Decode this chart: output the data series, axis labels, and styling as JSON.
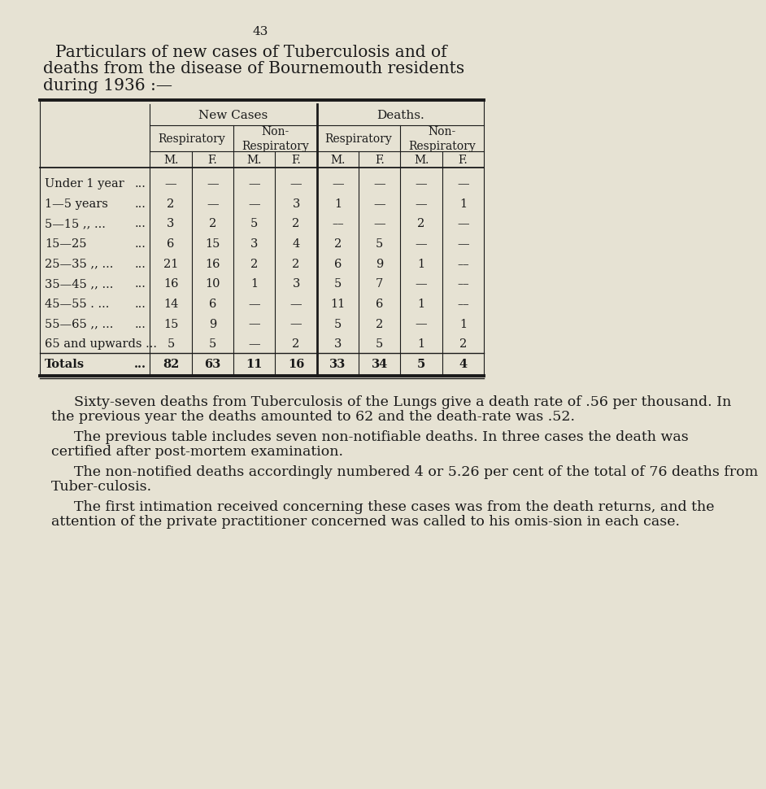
{
  "page_number": "43",
  "title_lines": [
    "Particulars of new cases of Tuberculosis and of",
    "deaths from the disease of Bournemouth residents",
    "during 1936 :—"
  ],
  "bg_color": "#e6e2d3",
  "text_color": "#1a1a1a",
  "col_headers_level3": [
    "M.",
    "F.",
    "M.",
    "F.",
    "M.",
    "F.",
    "M.",
    "F."
  ],
  "data": [
    [
      "—",
      "—",
      "—",
      "—",
      "—",
      "—",
      "—",
      "—"
    ],
    [
      "2",
      "—",
      "—",
      "3",
      "1",
      "—",
      "—",
      "1"
    ],
    [
      "3",
      "2",
      "5",
      "2",
      "––",
      "—",
      "2",
      "—"
    ],
    [
      "6",
      "15",
      "3",
      "4",
      "2",
      "5",
      "—",
      "—"
    ],
    [
      "21",
      "16",
      "2",
      "2",
      "6",
      "9",
      "1",
      "––"
    ],
    [
      "16",
      "10",
      "1",
      "3",
      "5",
      "7",
      "—",
      "––"
    ],
    [
      "14",
      "6",
      "—",
      "—",
      "11",
      "6",
      "1",
      "––"
    ],
    [
      "15",
      "9",
      "—",
      "—",
      "5",
      "2",
      "—",
      "1"
    ],
    [
      "5",
      "5",
      "—",
      "2",
      "3",
      "5",
      "1",
      "2"
    ],
    [
      "82",
      "63",
      "11",
      "16",
      "33",
      "34",
      "5",
      "4"
    ]
  ],
  "row_labels_text": [
    "Under 1 year",
    "1—5 years",
    "5—15 ,, ...",
    "15—25",
    "25—35 ,, ...",
    "35—45 ,, ...",
    "45—55 . ...",
    "55—65 ,, ...",
    "65 and upwards ...",
    "Totals"
  ],
  "row_dots": [
    "...",
    "...",
    "...",
    "...",
    "...",
    "...",
    "...",
    "...",
    "",
    "..."
  ],
  "paragraph1": "Sixty-seven deaths from Tuberculosis of the Lungs give a death rate of .56 per thousand.  In the previous year the deaths amounted to 62 and the death-rate was .52.",
  "paragraph2": "The previous table includes seven non-notifiable deaths.  In three cases the death was certified after post-mortem examination.",
  "paragraph3": "The non-notified deaths accordingly numbered 4 or 5.26 per cent of the total of 76 deaths from Tuber-culosis.",
  "paragraph4": "The first intimation received concerning these cases was from the death returns, and the attention of the private practitioner concerned was called to his omis-sion in each case."
}
